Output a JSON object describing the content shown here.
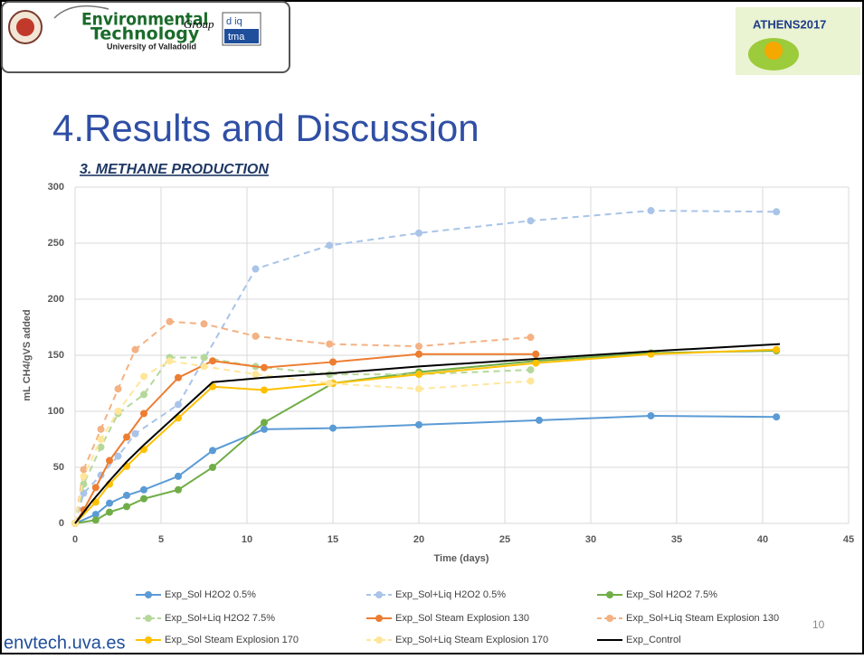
{
  "header": {
    "group_line1": "Environmental",
    "group_line2": "Technology",
    "group_word": "Group",
    "university": "University of Valladolid",
    "logo_top": "d iq",
    "logo_bottom": "tma",
    "conference": "ATHENS2017"
  },
  "slide_title": "4.Results and Discussion",
  "section": "3. METHANE PRODUCTION",
  "footer": "envtech.uva.es",
  "page_number": "10",
  "chart_data": {
    "type": "line",
    "x_label": "Time (days)",
    "y_label": "mL CH4/gVS added",
    "xlim": [
      0,
      45
    ],
    "xticks": [
      0,
      5,
      10,
      15,
      20,
      25,
      30,
      35,
      40,
      45
    ],
    "ylim": [
      0,
      300
    ],
    "yticks": [
      0,
      50,
      100,
      150,
      200,
      250,
      300
    ],
    "grid": true,
    "series": [
      {
        "name": "Exp_Sol H2O2 0.5%",
        "color": "#5b9bd5",
        "dashed": false,
        "markers": true,
        "x": [
          0,
          1.2,
          2,
          3,
          4,
          6,
          8,
          11,
          15,
          20,
          27,
          33.5,
          40.8
        ],
        "values": [
          0,
          8,
          18,
          25,
          30,
          42,
          65,
          84,
          85,
          88,
          92,
          96,
          95
        ]
      },
      {
        "name": "Exp_Sol+Liq H2O2 0.5%",
        "color": "#a9c4e8",
        "dashed": true,
        "markers": true,
        "x": [
          0,
          0.5,
          1.5,
          2.5,
          3.5,
          6,
          10.5,
          14.8,
          20,
          26.5,
          33.5,
          40.8
        ],
        "values": [
          0,
          27,
          43,
          60,
          80,
          106,
          227,
          248,
          259,
          270,
          279,
          278
        ]
      },
      {
        "name": "Exp_Sol H2O2 7.5%",
        "color": "#70ad47",
        "dashed": false,
        "markers": true,
        "x": [
          0,
          1.2,
          2,
          3,
          4,
          6,
          8,
          11,
          15,
          20,
          26.8,
          33.5,
          40.8
        ],
        "values": [
          0,
          3,
          10,
          15,
          22,
          30,
          50,
          90,
          125,
          135,
          145,
          152,
          154
        ]
      },
      {
        "name": "Exp_Sol+Liq H2O2 7.5%",
        "color": "#b5d89a",
        "dashed": true,
        "markers": true,
        "x": [
          0,
          0.5,
          1.5,
          2.5,
          4,
          5.5,
          7.5,
          10.5,
          14.8,
          20,
          26.5
        ],
        "values": [
          0,
          35,
          68,
          98,
          115,
          148,
          148,
          140,
          133,
          133,
          137
        ]
      },
      {
        "name": "Exp_Sol Steam Explosion 130",
        "color": "#ed7d31",
        "dashed": false,
        "markers": true,
        "x": [
          0,
          0.5,
          1.2,
          2,
          3,
          4,
          6,
          8,
          11,
          15,
          20,
          26.8
        ],
        "values": [
          0,
          12,
          32,
          56,
          77,
          98,
          130,
          145,
          139,
          144,
          151,
          151
        ]
      },
      {
        "name": "Exp_Sol+Liq Steam Explosion 130",
        "color": "#f4b183",
        "dashed": true,
        "markers": true,
        "x": [
          0,
          0.5,
          1.5,
          2.5,
          3.5,
          5.5,
          7.5,
          10.5,
          14.8,
          20,
          26.5
        ],
        "values": [
          0,
          48,
          84,
          120,
          155,
          180,
          178,
          167,
          160,
          158,
          166
        ]
      },
      {
        "name": "Exp_Sol Steam Explosion 170",
        "color": "#ffc000",
        "dashed": false,
        "markers": true,
        "x": [
          0,
          1.2,
          2,
          3,
          4,
          6,
          8,
          11,
          15,
          20,
          26.8,
          33.5,
          40.8
        ],
        "values": [
          0,
          19,
          35,
          51,
          66,
          94,
          122,
          119,
          125,
          133,
          143,
          151,
          155
        ]
      },
      {
        "name": "Exp_Sol+Liq Steam Explosion 170",
        "color": "#ffe699",
        "dashed": true,
        "markers": true,
        "x": [
          0,
          0.5,
          1.5,
          2.5,
          4,
          5.5,
          7.5,
          10.5,
          14.8,
          20,
          26.5
        ],
        "values": [
          0,
          42,
          75,
          100,
          131,
          145,
          140,
          133,
          125,
          120,
          127
        ]
      },
      {
        "name": "Exp_Control",
        "color": "#000000",
        "dashed": false,
        "markers": false,
        "x": [
          0,
          1,
          2,
          3,
          4,
          6,
          8,
          11,
          15,
          20,
          27,
          34,
          41
        ],
        "values": [
          0,
          20,
          38,
          55,
          70,
          98,
          126,
          130,
          134,
          140,
          147,
          154,
          160
        ]
      }
    ]
  }
}
